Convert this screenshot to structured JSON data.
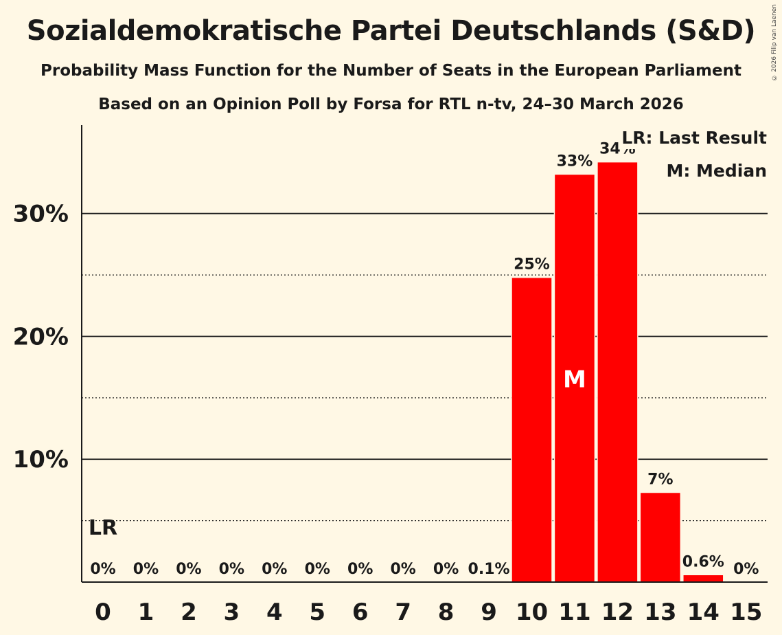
{
  "header": {
    "title": "Sozialdemokratische Partei Deutschlands (S&D)",
    "subtitle": "Probability Mass Function for the Number of Seats in the European Parliament",
    "subtitle2": "Based on an Opinion Poll by Forsa for RTL n-tv, 24–30 March 2026",
    "copyright": "© 2026 Filip van Laenen"
  },
  "legend": {
    "last_result": "LR: Last Result",
    "median": "M: Median"
  },
  "colors": {
    "bar": "#ff0000",
    "background": "#fff8e5",
    "text": "#1a1a1a"
  },
  "chart_data": {
    "type": "bar",
    "title": "Sozialdemokratische Partei Deutschlands (S&D)",
    "xlabel": "",
    "ylabel": "",
    "categories": [
      "0",
      "1",
      "2",
      "3",
      "4",
      "5",
      "6",
      "7",
      "8",
      "9",
      "10",
      "11",
      "12",
      "13",
      "14",
      "15"
    ],
    "values": [
      0,
      0,
      0,
      0,
      0,
      0,
      0,
      0,
      0,
      0.1,
      24.8,
      33.2,
      34.2,
      7.3,
      0.6,
      0
    ],
    "data_labels": [
      "0%",
      "0%",
      "0%",
      "0%",
      "0%",
      "0%",
      "0%",
      "0%",
      "0%",
      "0.1%",
      "25%",
      "33%",
      "34%",
      "7%",
      "0.6%",
      "0%"
    ],
    "ylim": [
      0,
      37.2
    ],
    "yticks": [
      10,
      20,
      30
    ],
    "ytick_labels": [
      "10%",
      "20%",
      "30%"
    ],
    "minor_gridlines": [
      5,
      15,
      25
    ],
    "median_index": 11,
    "median_label": "M",
    "last_result_index": 0,
    "last_result_label": "LR"
  }
}
